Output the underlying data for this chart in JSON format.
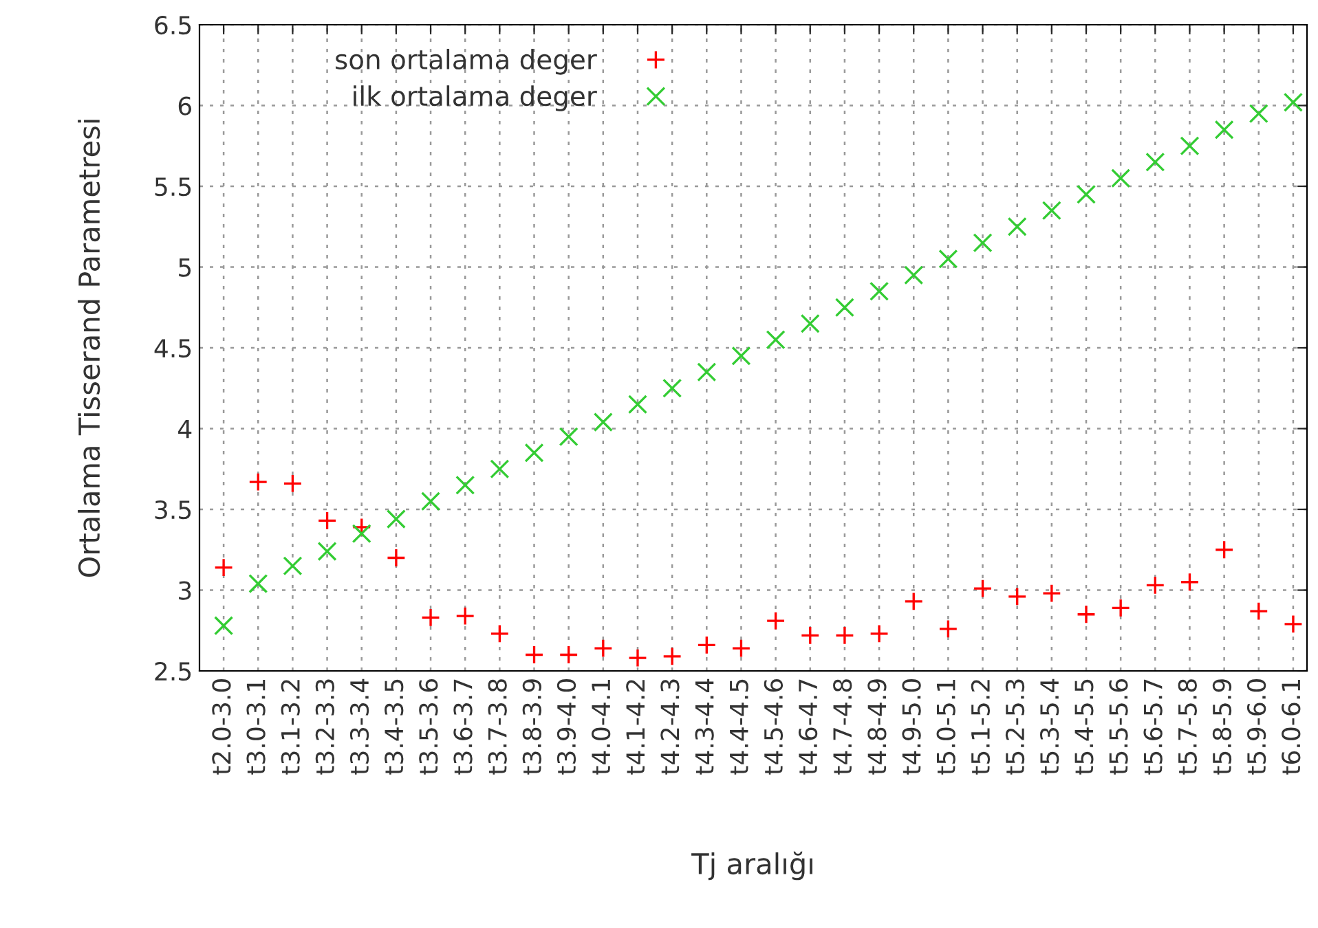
{
  "chart_data": {
    "type": "scatter",
    "xlabel": "Tj aralığı",
    "ylabel": "Ortalama Tisserand Parametresi",
    "categories": [
      "t2.0-3.0",
      "t3.0-3.1",
      "t3.1-3.2",
      "t3.2-3.3",
      "t3.3-3.4",
      "t3.4-3.5",
      "t3.5-3.6",
      "t3.6-3.7",
      "t3.7-3.8",
      "t3.8-3.9",
      "t3.9-4.0",
      "t4.0-4.1",
      "t4.1-4.2",
      "t4.2-4.3",
      "t4.3-4.4",
      "t4.4-4.5",
      "t4.5-4.6",
      "t4.6-4.7",
      "t4.7-4.8",
      "t4.8-4.9",
      "t4.9-5.0",
      "t5.0-5.1",
      "t5.1-5.2",
      "t5.2-5.3",
      "t5.3-5.4",
      "t5.4-5.5",
      "t5.5-5.6",
      "t5.6-5.7",
      "t5.7-5.8",
      "t5.8-5.9",
      "t5.9-6.0",
      "t6.0-6.1"
    ],
    "series": [
      {
        "name": "son ortalama deger",
        "color": "#ff0000",
        "marker": "plus",
        "values": [
          3.14,
          3.67,
          3.66,
          3.43,
          3.39,
          3.2,
          2.83,
          2.84,
          2.73,
          2.6,
          2.6,
          2.64,
          2.58,
          2.59,
          2.66,
          2.64,
          2.81,
          2.72,
          2.72,
          2.73,
          2.93,
          2.76,
          3.01,
          2.96,
          2.98,
          2.85,
          2.89,
          3.03,
          3.05,
          3.25,
          2.87,
          2.79
        ]
      },
      {
        "name": "ilk ortalama deger",
        "color": "#33cc33",
        "marker": "cross",
        "values": [
          2.78,
          3.04,
          3.15,
          3.24,
          3.35,
          3.44,
          3.55,
          3.65,
          3.75,
          3.85,
          3.95,
          4.04,
          4.15,
          4.25,
          4.35,
          4.45,
          4.55,
          4.65,
          4.75,
          4.85,
          4.95,
          5.05,
          5.15,
          5.25,
          5.35,
          5.45,
          5.55,
          5.65,
          5.75,
          5.85,
          5.95,
          6.02
        ]
      }
    ],
    "ylim": [
      2.5,
      6.5
    ],
    "yticks": [
      2.5,
      3,
      3.5,
      4,
      4.5,
      5,
      5.5,
      6,
      6.5
    ],
    "grid": true,
    "legend": "top left"
  }
}
